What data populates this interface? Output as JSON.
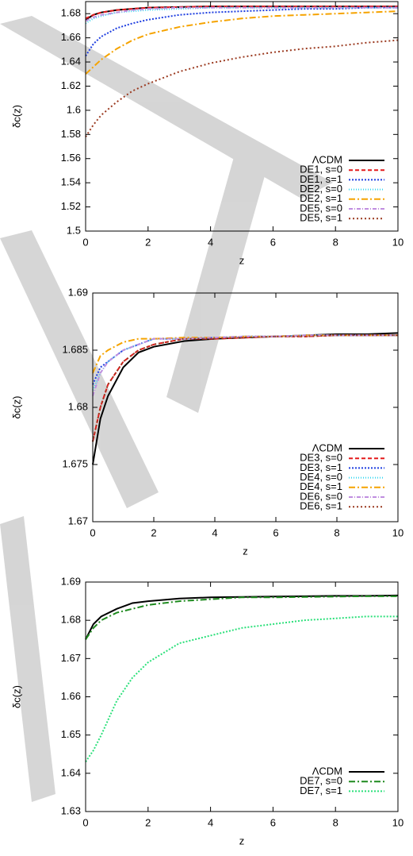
{
  "chart_data": [
    {
      "type": "line",
      "xlabel": "z",
      "ylabel": "δc(z)",
      "x": [
        0,
        0.25,
        0.5,
        1,
        1.5,
        2,
        3,
        4,
        5,
        6,
        7,
        8,
        9,
        10
      ],
      "xlim": [
        0,
        10
      ],
      "xticks": [
        0,
        2,
        4,
        6,
        8,
        10
      ],
      "ylim": [
        1.5,
        1.69
      ],
      "yticks": [
        1.5,
        1.52,
        1.54,
        1.56,
        1.58,
        1.6,
        1.62,
        1.64,
        1.66,
        1.68
      ],
      "series": [
        {
          "name": "ΛCDM",
          "color": "#000000",
          "dash": "none",
          "values": [
            1.675,
            1.679,
            1.681,
            1.683,
            1.684,
            1.685,
            1.6855,
            1.686,
            1.686,
            1.686,
            1.686,
            1.686,
            1.686,
            1.686
          ]
        },
        {
          "name": "DE1, s=0",
          "color": "#e41a1c",
          "dash": "5,3",
          "values": [
            1.676,
            1.679,
            1.681,
            1.683,
            1.684,
            1.685,
            1.6855,
            1.686,
            1.686,
            1.686,
            1.686,
            1.686,
            1.686,
            1.686
          ]
        },
        {
          "name": "DE1, s=1",
          "color": "#1f3fe0",
          "dash": "2,2",
          "values": [
            1.645,
            1.655,
            1.661,
            1.668,
            1.672,
            1.675,
            1.679,
            1.681,
            1.682,
            1.683,
            1.684,
            1.684,
            1.685,
            1.685
          ]
        },
        {
          "name": "DE2, s=0",
          "color": "#33d6f0",
          "dash": "1,2",
          "values": [
            1.672,
            1.676,
            1.678,
            1.681,
            1.682,
            1.683,
            1.684,
            1.685,
            1.685,
            1.685,
            1.685,
            1.685,
            1.685,
            1.685
          ]
        },
        {
          "name": "DE2, s=1",
          "color": "#f5a300",
          "dash": "8,3,2,3",
          "values": [
            1.63,
            1.636,
            1.642,
            1.651,
            1.658,
            1.663,
            1.669,
            1.673,
            1.676,
            1.678,
            1.679,
            1.68,
            1.681,
            1.682
          ]
        },
        {
          "name": "DE5, s=0",
          "color": "#c08ee0",
          "dash": "5,2,1,2",
          "values": [
            1.674,
            1.677,
            1.679,
            1.681,
            1.683,
            1.684,
            1.685,
            1.685,
            1.685,
            1.685,
            1.685,
            1.685,
            1.685,
            1.685
          ]
        },
        {
          "name": "DE5, s=1",
          "color": "#9b3a20",
          "dash": "2,3",
          "values": [
            1.578,
            1.588,
            1.596,
            1.607,
            1.616,
            1.622,
            1.632,
            1.639,
            1.644,
            1.648,
            1.651,
            1.653,
            1.656,
            1.658
          ]
        }
      ]
    },
    {
      "type": "line",
      "xlabel": "z",
      "ylabel": "δc(z)",
      "x": [
        0,
        0.25,
        0.5,
        1,
        1.5,
        2,
        3,
        4,
        5,
        6,
        7,
        8,
        9,
        10
      ],
      "xlim": [
        0,
        10
      ],
      "xticks": [
        0,
        2,
        4,
        6,
        8,
        10
      ],
      "ylim": [
        1.67,
        1.69
      ],
      "yticks": [
        1.67,
        1.675,
        1.68,
        1.685,
        1.69
      ],
      "series": [
        {
          "name": "ΛCDM",
          "color": "#000000",
          "dash": "none",
          "values": [
            1.675,
            1.679,
            1.681,
            1.6835,
            1.6848,
            1.6853,
            1.6858,
            1.686,
            1.6861,
            1.6862,
            1.6863,
            1.6864,
            1.6864,
            1.6865
          ]
        },
        {
          "name": "DE3, s=0",
          "color": "#e41a1c",
          "dash": "5,3",
          "values": [
            1.677,
            1.68,
            1.682,
            1.684,
            1.685,
            1.6855,
            1.686,
            1.686,
            1.6861,
            1.6862,
            1.6862,
            1.6863,
            1.6863,
            1.6863
          ]
        },
        {
          "name": "DE3, s=1",
          "color": "#1f3fe0",
          "dash": "2,2",
          "values": [
            1.682,
            1.6835,
            1.684,
            1.685,
            1.6855,
            1.686,
            1.686,
            1.6861,
            1.6862,
            1.6862,
            1.6863,
            1.6863,
            1.6863,
            1.6863
          ]
        },
        {
          "name": "DE4, s=0",
          "color": "#33d6f0",
          "dash": "1,2",
          "values": [
            1.6815,
            1.683,
            1.684,
            1.685,
            1.6855,
            1.686,
            1.686,
            1.6861,
            1.6862,
            1.6862,
            1.6863,
            1.6863,
            1.6863,
            1.6863
          ]
        },
        {
          "name": "DE4, s=1",
          "color": "#f5a300",
          "dash": "8,3,2,3",
          "values": [
            1.683,
            1.6845,
            1.685,
            1.6857,
            1.686,
            1.686,
            1.6861,
            1.6861,
            1.6862,
            1.6862,
            1.6863,
            1.6863,
            1.6863,
            1.6863
          ]
        },
        {
          "name": "DE6, s=0",
          "color": "#c08ee0",
          "dash": "5,2,1,2",
          "values": [
            1.681,
            1.683,
            1.684,
            1.685,
            1.6855,
            1.686,
            1.686,
            1.6861,
            1.6862,
            1.6862,
            1.6863,
            1.6863,
            1.6863,
            1.6863
          ]
        },
        {
          "name": "DE6, s=1",
          "color": "#9b3a20",
          "dash": "2,3",
          "values": [
            1.677,
            1.68,
            1.682,
            1.684,
            1.685,
            1.6855,
            1.686,
            1.686,
            1.6861,
            1.6862,
            1.6862,
            1.6863,
            1.6863,
            1.6863
          ]
        }
      ]
    },
    {
      "type": "line",
      "xlabel": "z",
      "ylabel": "δc(z)",
      "x": [
        0,
        0.25,
        0.5,
        1,
        1.5,
        2,
        3,
        4,
        5,
        6,
        7,
        8,
        9,
        10
      ],
      "xlim": [
        0,
        10
      ],
      "xticks": [
        0,
        2,
        4,
        6,
        8,
        10
      ],
      "ylim": [
        1.63,
        1.69
      ],
      "yticks": [
        1.63,
        1.64,
        1.65,
        1.66,
        1.67,
        1.68,
        1.69
      ],
      "series": [
        {
          "name": "ΛCDM",
          "color": "#000000",
          "dash": "none",
          "values": [
            1.675,
            1.679,
            1.681,
            1.683,
            1.6845,
            1.685,
            1.6857,
            1.686,
            1.6861,
            1.6862,
            1.6863,
            1.6864,
            1.6864,
            1.6865
          ]
        },
        {
          "name": "DE7, s=0",
          "color": "#1e8a1e",
          "dash": "8,3,2,3",
          "values": [
            1.675,
            1.678,
            1.68,
            1.682,
            1.683,
            1.684,
            1.685,
            1.6855,
            1.686,
            1.686,
            1.6861,
            1.6862,
            1.6863,
            1.6863
          ]
        },
        {
          "name": "DE7, s=1",
          "color": "#2be07a",
          "dash": "2,2",
          "values": [
            1.643,
            1.646,
            1.65,
            1.659,
            1.665,
            1.669,
            1.674,
            1.676,
            1.678,
            1.679,
            1.68,
            1.6805,
            1.681,
            1.681
          ]
        }
      ]
    }
  ]
}
